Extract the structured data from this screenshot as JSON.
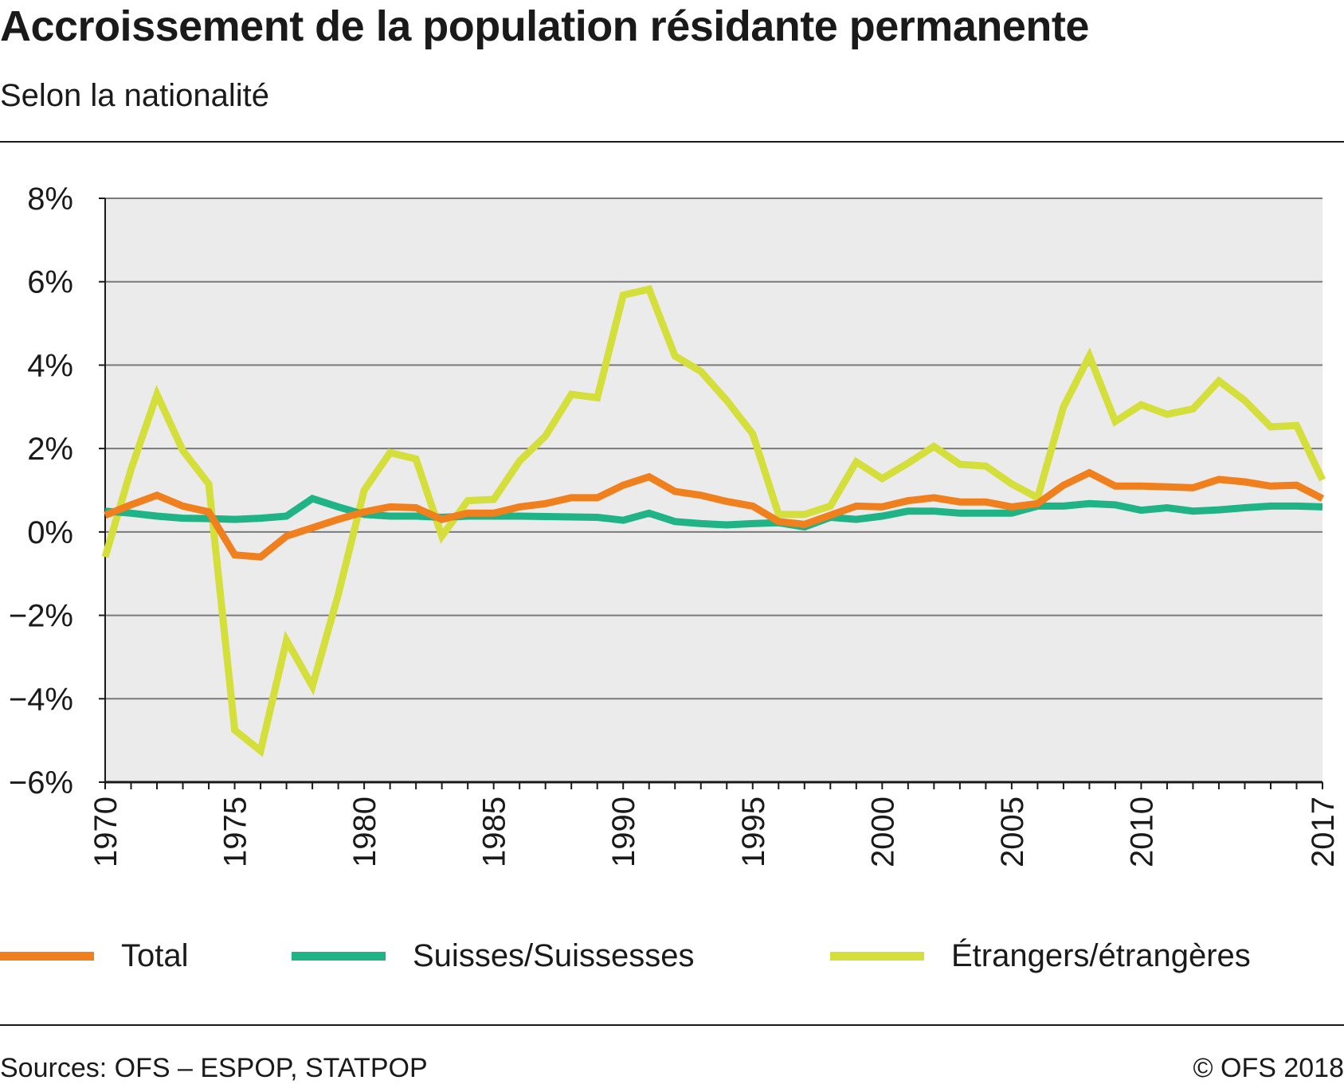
{
  "header": {
    "title": "Accroissement de la population résidante permanente",
    "subtitle": "Selon la nationalité"
  },
  "legend": {
    "items": [
      {
        "label": "Total",
        "color": "#f07f1e"
      },
      {
        "label": "Suisses/Suissesses",
        "color": "#1fb386"
      },
      {
        "label": "Étrangers/étrangères",
        "color": "#d4df3c"
      }
    ]
  },
  "footer": {
    "source": "Sources: OFS – ESPOP, STATPOP",
    "copyright": "© OFS 2018"
  },
  "chart_data": {
    "type": "line",
    "title": "Accroissement de la population résidante permanente",
    "subtitle": "Selon la nationalité",
    "x": [
      1970,
      1971,
      1972,
      1973,
      1974,
      1975,
      1976,
      1977,
      1978,
      1979,
      1980,
      1981,
      1982,
      1983,
      1984,
      1985,
      1986,
      1987,
      1988,
      1989,
      1990,
      1991,
      1992,
      1993,
      1994,
      1995,
      1996,
      1997,
      1998,
      1999,
      2000,
      2001,
      2002,
      2003,
      2004,
      2005,
      2006,
      2007,
      2008,
      2009,
      2010,
      2011,
      2012,
      2013,
      2014,
      2015,
      2016,
      2017
    ],
    "x_tick_labels": [
      "1970",
      "1975",
      "1980",
      "1985",
      "1990",
      "1995",
      "2000",
      "2005",
      "2010",
      "2017"
    ],
    "x_tick_values": [
      1970,
      1975,
      1980,
      1985,
      1990,
      1995,
      2000,
      2005,
      2010,
      2017
    ],
    "xlim": [
      1970,
      2017
    ],
    "ylim": [
      -6,
      8
    ],
    "y_ticks": [
      -6,
      -4,
      -2,
      0,
      2,
      4,
      6,
      8
    ],
    "y_tick_labels": [
      "−6%",
      "−4%",
      "−2%",
      "0%",
      "2%",
      "4%",
      "6%",
      "8%"
    ],
    "grid": true,
    "legend_position": "bottom",
    "series": [
      {
        "name": "Total",
        "color": "#f07f1e",
        "values": [
          0.4,
          0.65,
          0.88,
          0.62,
          0.48,
          -0.55,
          -0.6,
          -0.1,
          0.1,
          0.3,
          0.48,
          0.6,
          0.58,
          0.3,
          0.45,
          0.45,
          0.6,
          0.68,
          0.82,
          0.82,
          1.12,
          1.32,
          0.97,
          0.88,
          0.73,
          0.62,
          0.25,
          0.18,
          0.4,
          0.62,
          0.6,
          0.75,
          0.82,
          0.72,
          0.72,
          0.6,
          0.68,
          1.12,
          1.42,
          1.1,
          1.1,
          1.08,
          1.06,
          1.26,
          1.2,
          1.1,
          1.12,
          0.8
        ]
      },
      {
        "name": "Suisses/Suissesses",
        "color": "#1fb386",
        "values": [
          0.5,
          0.45,
          0.38,
          0.33,
          0.32,
          0.3,
          0.33,
          0.38,
          0.8,
          0.6,
          0.42,
          0.38,
          0.38,
          0.35,
          0.38,
          0.38,
          0.38,
          0.37,
          0.36,
          0.35,
          0.28,
          0.45,
          0.25,
          0.2,
          0.17,
          0.2,
          0.22,
          0.12,
          0.35,
          0.3,
          0.38,
          0.5,
          0.5,
          0.45,
          0.45,
          0.45,
          0.62,
          0.62,
          0.68,
          0.65,
          0.52,
          0.58,
          0.5,
          0.53,
          0.58,
          0.62,
          0.62,
          0.6
        ]
      },
      {
        "name": "Étrangers/étrangères",
        "color": "#d4df3c",
        "values": [
          -0.6,
          1.5,
          3.3,
          1.95,
          1.15,
          -4.75,
          -5.25,
          -2.6,
          -3.7,
          -1.5,
          1.0,
          1.9,
          1.75,
          -0.1,
          0.75,
          0.78,
          1.7,
          2.3,
          3.3,
          3.22,
          5.68,
          5.82,
          4.22,
          3.85,
          3.15,
          2.35,
          0.42,
          0.42,
          0.62,
          1.68,
          1.28,
          1.65,
          2.05,
          1.62,
          1.58,
          1.15,
          0.82,
          3.0,
          4.22,
          2.65,
          3.05,
          2.82,
          2.95,
          3.62,
          3.15,
          2.52,
          2.55,
          1.25
        ]
      }
    ]
  }
}
